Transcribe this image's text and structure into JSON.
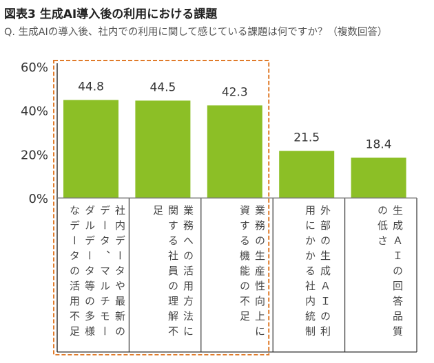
{
  "title": "図表3 生成AI導入後の利用における課題",
  "subtitle": "Q. 生成AIの導入後、社内での利用に関して感じている課題は何ですか？（複数回答）",
  "colors": {
    "bar": "#8cbf26",
    "highlight": "#e07b2a",
    "border": "#333333"
  },
  "chart_data": {
    "type": "bar",
    "title": "図表3 生成AI導入後の利用における課題",
    "categories": [
      "社内データや最新の\nデータ、マルチモー\nダルデータ等の多様\nなデータの活用不足",
      "業務への活用方法に\n関する社員の理解不\n足",
      "業務の生産性向上に\n資する機能の不足",
      "外部の生成ＡＩの利\n用にかかる社内統制",
      "生成ＡＩの回答品質\nの低さ"
    ],
    "values": [
      44.8,
      44.5,
      42.3,
      21.5,
      18.4
    ],
    "data_labels": [
      "44.8",
      "44.5",
      "42.3",
      "21.5",
      "18.4"
    ],
    "ylim": [
      0,
      60
    ],
    "yticks": [
      "0%",
      "20%",
      "40%",
      "60%"
    ],
    "ytick_values": [
      0,
      20,
      40,
      60
    ],
    "grid": false,
    "highlighted_categories": [
      0,
      1,
      2
    ]
  }
}
